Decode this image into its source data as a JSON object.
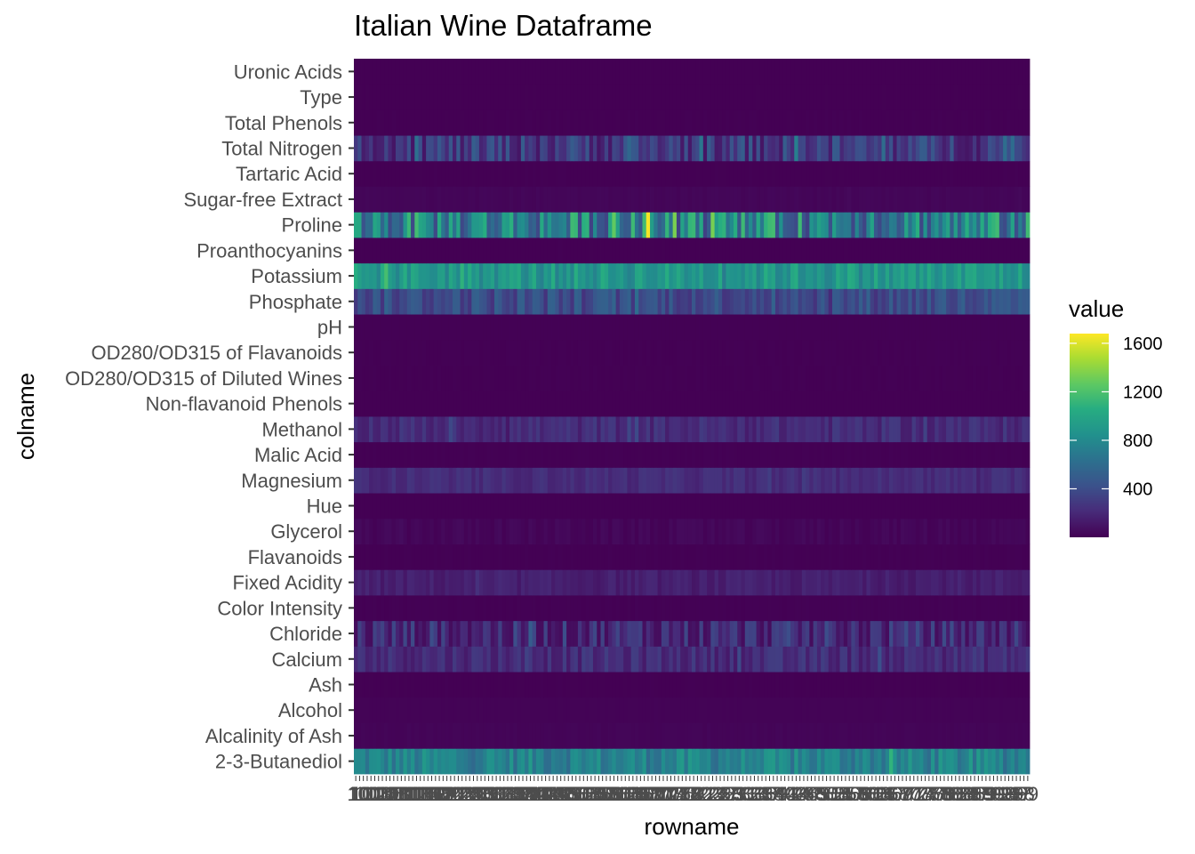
{
  "chart_data": {
    "type": "heatmap",
    "title": "Italian Wine Dataframe",
    "xlabel": "rowname",
    "ylabel": "colname",
    "x_count": 178,
    "y_categories": [
      "2-3-Butanediol",
      "Alcalinity of Ash",
      "Alcohol",
      "Ash",
      "Calcium",
      "Chloride",
      "Color Intensity",
      "Fixed Acidity",
      "Flavanoids",
      "Glycerol",
      "Hue",
      "Magnesium",
      "Malic Acid",
      "Methanol",
      "Non-flavanoid Phenols",
      "OD280/OD315 of Diluted Wines",
      "OD280/OD315 of Flavanoids",
      "pH",
      "Phosphate",
      "Potassium",
      "Proanthocyanins",
      "Proline",
      "Sugar-free Extract",
      "Tartaric Acid",
      "Total Nitrogen",
      "Total Phenols",
      "Type",
      "Uronic Acids"
    ],
    "x_tick_labels_sample": [
      "1",
      "10",
      "100",
      "101",
      "102",
      "103",
      "104",
      "105",
      "106",
      "107",
      "108",
      "109",
      "11",
      "110",
      "111",
      "112",
      "113",
      "114",
      "115",
      "116",
      "117",
      "118",
      "119",
      "12",
      "120",
      "121",
      "122",
      "123",
      "124",
      "125",
      "126",
      "127",
      "128",
      "129",
      "13",
      "130",
      "131",
      "132",
      "133",
      "134",
      "135",
      "136",
      "137",
      "138",
      "139",
      "14",
      "140",
      "141",
      "142",
      "143",
      "144",
      "145",
      "146",
      "147",
      "148",
      "149",
      "15",
      "150",
      "151",
      "152",
      "153",
      "154",
      "155",
      "156",
      "157",
      "158",
      "159",
      "16",
      "160",
      "161",
      "162",
      "163",
      "164",
      "165",
      "166",
      "167",
      "168",
      "169",
      "17",
      "170",
      "171",
      "172",
      "173",
      "174",
      "175",
      "176",
      "177",
      "178",
      "18",
      "19",
      "2",
      "20",
      "21",
      "22",
      "23",
      "24",
      "25",
      "26",
      "27",
      "28",
      "29",
      "3",
      "30",
      "31",
      "32",
      "33",
      "34",
      "35",
      "36",
      "37",
      "38",
      "39",
      "4",
      "40",
      "41",
      "42",
      "43",
      "44",
      "45",
      "46",
      "47",
      "48",
      "49",
      "5",
      "50",
      "51",
      "52",
      "53",
      "54",
      "55",
      "56",
      "57",
      "58",
      "59",
      "6",
      "60",
      "61",
      "62",
      "63",
      "64",
      "65",
      "66",
      "67",
      "68",
      "69",
      "7",
      "70",
      "71",
      "72",
      "73",
      "74",
      "75",
      "76",
      "77",
      "78",
      "79",
      "8",
      "80",
      "81",
      "82",
      "83",
      "84",
      "85",
      "86",
      "87",
      "88",
      "89",
      "9",
      "90",
      "91",
      "92",
      "93",
      "94",
      "95",
      "96",
      "97",
      "98",
      "99"
    ],
    "approx_row_values": {
      "2-3-Butanediol": {
        "mean": 750,
        "range": [
          550,
          1100
        ]
      },
      "Alcalinity of Ash": {
        "mean": 20,
        "range": [
          10,
          30
        ]
      },
      "Alcohol": {
        "mean": 13,
        "range": [
          11,
          15
        ]
      },
      "Ash": {
        "mean": 2.4,
        "range": [
          1.4,
          3.2
        ]
      },
      "Calcium": {
        "mean": 220,
        "range": [
          100,
          420
        ]
      },
      "Chloride": {
        "mean": 200,
        "range": [
          60,
          750
        ]
      },
      "Color Intensity": {
        "mean": 5,
        "range": [
          1,
          13
        ]
      },
      "Fixed Acidity": {
        "mean": 150,
        "range": [
          100,
          250
        ]
      },
      "Flavanoids": {
        "mean": 2,
        "range": [
          0.3,
          5
        ]
      },
      "Glycerol": {
        "mean": 25,
        "range": [
          5,
          80
        ]
      },
      "Hue": {
        "mean": 1,
        "range": [
          0.5,
          1.7
        ]
      },
      "Magnesium": {
        "mean": 220,
        "range": [
          150,
          320
        ]
      },
      "Malic Acid": {
        "mean": 2.3,
        "range": [
          0.7,
          6
        ]
      },
      "Methanol": {
        "mean": 220,
        "range": [
          100,
          380
        ]
      },
      "Non-flavanoid Phenols": {
        "mean": 0.4,
        "range": [
          0.1,
          0.7
        ]
      },
      "OD280/OD315 of Diluted Wines": {
        "mean": 2.6,
        "range": [
          1.3,
          4
        ]
      },
      "OD280/OD315 of Flavanoids": {
        "mean": 3,
        "range": [
          1,
          5
        ]
      },
      "pH": {
        "mean": 3.3,
        "range": [
          3,
          3.7
        ]
      },
      "Phosphate": {
        "mean": 400,
        "range": [
          200,
          700
        ]
      },
      "Potassium": {
        "mean": 900,
        "range": [
          650,
          1200
        ]
      },
      "Proanthocyanins": {
        "mean": 1.6,
        "range": [
          0.4,
          3.6
        ]
      },
      "Proline": {
        "mean": 750,
        "range": [
          280,
          1680
        ]
      },
      "Sugar-free Extract": {
        "mean": 25,
        "range": [
          15,
          40
        ]
      },
      "Tartaric Acid": {
        "mean": 2,
        "range": [
          1,
          4
        ]
      },
      "Total Nitrogen": {
        "mean": 300,
        "range": [
          100,
          800
        ]
      },
      "Total Phenols": {
        "mean": 2.3,
        "range": [
          1,
          3.9
        ]
      },
      "Type": {
        "mean": 2,
        "range": [
          1,
          3
        ]
      },
      "Uronic Acids": {
        "mean": 0.8,
        "range": [
          0.2,
          1.5
        ]
      }
    },
    "legend": {
      "title": "value",
      "colormap": "viridis",
      "range": [
        0,
        1680
      ],
      "ticks": [
        400,
        800,
        1200,
        1600
      ],
      "tick_labels": [
        "400",
        "800",
        "1200",
        "1600"
      ],
      "placement": "right"
    },
    "grid": false
  }
}
